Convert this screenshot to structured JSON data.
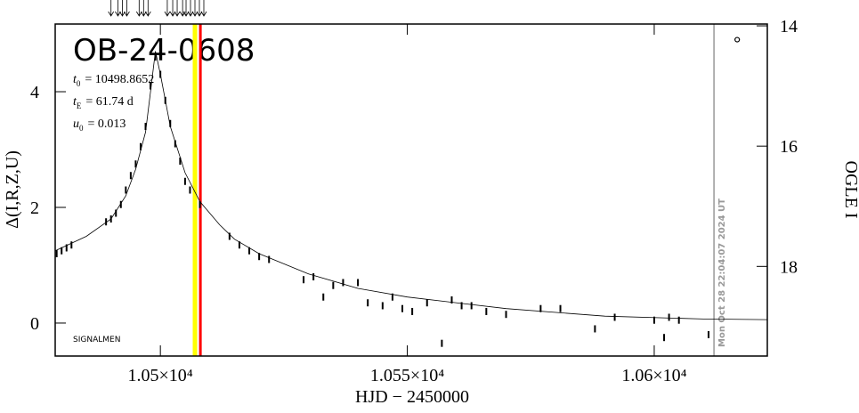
{
  "chart_data": {
    "type": "scatter",
    "title": "OB-24-0608",
    "params": [
      {
        "symbol": "t",
        "sub": "0",
        "text": "= 10498.8652"
      },
      {
        "symbol": "t",
        "sub": "E",
        "text": "= 61.74 d"
      },
      {
        "symbol": "u",
        "sub": "0",
        "text": "= 0.013"
      }
    ],
    "signature": "SIGNALMEN",
    "x_label": "HJD − 2450000",
    "y_label": "Δ(I,R,Z,U)",
    "y2_label": "OGLE I",
    "xlim": [
      10478.7,
      10622.9
    ],
    "ylim": [
      -0.57,
      5.17
    ],
    "y2lim": [
      13.97,
      19.49
    ],
    "xticks": [
      {
        "value": 10500,
        "label": "1.05×10⁴"
      },
      {
        "value": 10550,
        "label": "1.055×10⁴"
      },
      {
        "value": 10600,
        "label": "1.06×10⁴"
      }
    ],
    "yticks": [
      0,
      2,
      4
    ],
    "y2ticks": [
      14,
      16,
      18
    ],
    "color": "#000000",
    "x": [
      10479,
      10480,
      10481,
      10482,
      10489,
      10490,
      10491,
      10492,
      10493,
      10494,
      10495,
      10496,
      10497,
      10498,
      10499,
      10500,
      10501,
      10502,
      10503,
      10504,
      10505,
      10506,
      10508,
      10514,
      10516,
      10518,
      10520,
      10522,
      10529,
      10531,
      10533,
      10535,
      10537,
      10540,
      10542,
      10545,
      10547,
      10549,
      10551,
      10554,
      10557,
      10559,
      10561,
      10563,
      10566,
      10570,
      10577,
      10581,
      10588,
      10592,
      10600,
      10602,
      10603,
      10605,
      10611
    ],
    "values": [
      1.2,
      1.25,
      1.3,
      1.35,
      1.75,
      1.8,
      1.9,
      2.05,
      2.3,
      2.55,
      2.75,
      3.05,
      3.4,
      4.1,
      4.6,
      4.3,
      3.85,
      3.45,
      3.1,
      2.8,
      2.45,
      2.3,
      2.05,
      1.5,
      1.35,
      1.25,
      1.15,
      1.1,
      0.75,
      0.8,
      0.45,
      0.65,
      0.7,
      0.7,
      0.35,
      0.3,
      0.45,
      0.25,
      0.2,
      0.35,
      -0.35,
      0.4,
      0.3,
      0.3,
      0.2,
      0.15,
      0.25,
      0.25,
      -0.1,
      0.1,
      0.05,
      -0.25,
      0.1,
      0.05,
      -0.2
    ],
    "model": {
      "x": [
        10478.7,
        10485,
        10490,
        10493,
        10495,
        10497,
        10498,
        10499,
        10500,
        10502,
        10505,
        10508,
        10512,
        10515,
        10520,
        10530,
        10540,
        10550,
        10570,
        10590,
        10610,
        10622.9
      ],
      "values": [
        1.25,
        1.5,
        1.8,
        2.2,
        2.66,
        3.3,
        4.0,
        4.7,
        4.3,
        3.4,
        2.6,
        2.1,
        1.7,
        1.45,
        1.2,
        0.85,
        0.6,
        0.45,
        0.25,
        0.12,
        0.07,
        0.06
      ]
    },
    "extra_point": {
      "x": 10616.8,
      "value": 4.9
    },
    "arrows_x": [
      10490.0,
      10491.4,
      10492.3,
      10493.2,
      10495.7,
      10496.6,
      10497.5,
      10501.4,
      10502.5,
      10503.4,
      10504.5,
      10505.2,
      10506.1,
      10507.0,
      10507.9,
      10508.8
    ],
    "yellow_line": 10507.0,
    "red_line": 10508.1,
    "now_line": 10612.1,
    "now_label": "Mon Oct 28 22:04:07 2024 UT"
  }
}
